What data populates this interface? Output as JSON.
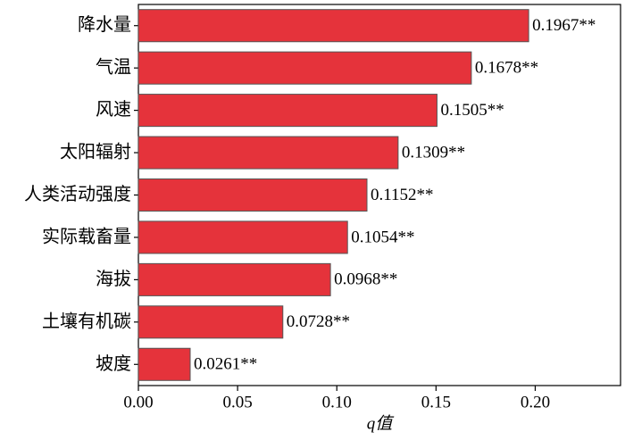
{
  "chart_data": {
    "type": "barh",
    "xlabel": "q值",
    "categories": [
      "降水量",
      "气温",
      "风速",
      "太阳辐射",
      "人类活动强度",
      "实际载畜量",
      "海拔",
      "土壤有机碳",
      "坡度"
    ],
    "values": [
      0.1967,
      0.1678,
      0.1505,
      0.1309,
      0.1152,
      0.1054,
      0.0968,
      0.0728,
      0.0261
    ],
    "value_labels": [
      "0.1967**",
      "0.1678**",
      "0.1505**",
      "0.1309**",
      "0.1152**",
      "0.1054**",
      "0.0968**",
      "0.0728**",
      "0.0261**"
    ],
    "color": "#e5333b",
    "xlim": [
      0,
      0.243
    ],
    "xticks": [
      {
        "value": 0,
        "label": "0.00"
      },
      0.05,
      {
        "value": 0.1,
        "label": "0.10"
      },
      0.15,
      {
        "value": 0.2,
        "label": "0.20"
      }
    ]
  }
}
